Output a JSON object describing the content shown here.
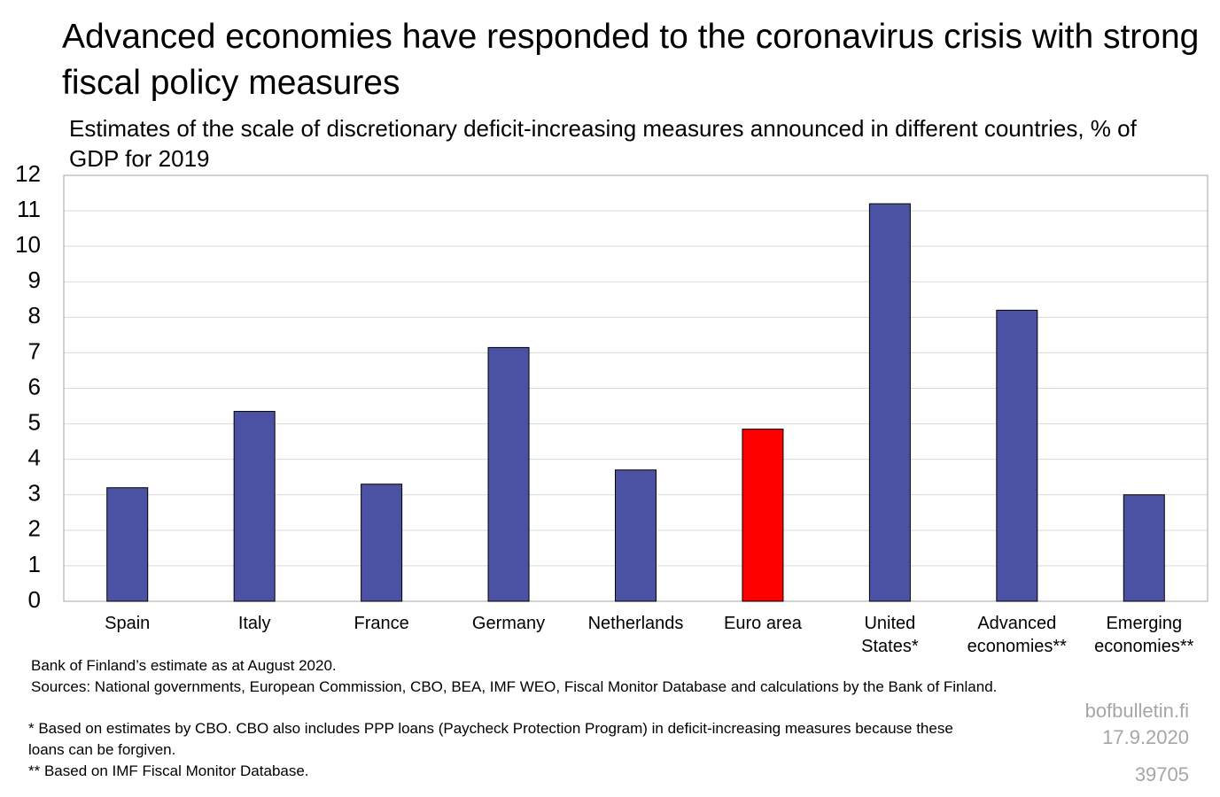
{
  "chart_data": {
    "type": "bar",
    "title": "Advanced economies have responded to the coronavirus crisis with strong fiscal policy measures",
    "subtitle": "Estimates of the scale of discretionary deficit-increasing measures announced in different countries, % of GDP for 2019",
    "categories": [
      "Spain",
      "Italy",
      "France",
      "Germany",
      "Netherlands",
      "Euro area",
      "United\nStates*",
      "Advanced\neconomies**",
      "Emerging\neconomies**"
    ],
    "values": [
      3.2,
      5.35,
      3.3,
      7.15,
      3.7,
      4.85,
      11.2,
      8.2,
      3.0
    ],
    "colors": [
      "#4c52a3",
      "#4c52a3",
      "#4c52a3",
      "#4c52a3",
      "#4c52a3",
      "#ff0000",
      "#4c52a3",
      "#4c52a3",
      "#4c52a3"
    ],
    "ylim": [
      0,
      12
    ],
    "yticks": [
      0,
      1,
      2,
      3,
      4,
      5,
      6,
      7,
      8,
      9,
      10,
      11,
      12
    ],
    "grid": true,
    "notes": [
      "Bank of Finland’s estimate as at August 2020.",
      "Sources: National governments, European Commission, CBO, BEA, IMF WEO, Fiscal Monitor Database and calculations by the Bank of Finland.",
      "* Based on estimates by CBO. CBO also includes PPP loans (Paycheck Protection Program) in deficit-increasing measures because these loans can be forgiven.",
      "** Based on IMF Fiscal Monitor Database."
    ],
    "source": "bofbulletin.fi",
    "date": "17.9.2020",
    "id": "39705"
  }
}
